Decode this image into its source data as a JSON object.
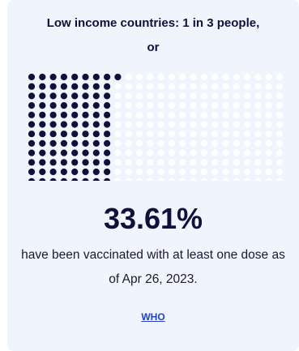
{
  "card": {
    "title": "Low income countries: 1 in 3 people, or",
    "percent": "33.61%",
    "description": "have been vaccinated with at least one dose as of Apr 26, 2023.",
    "source_link": "WHO"
  },
  "colors": {
    "filled": "#10103a",
    "empty": "#ffffff",
    "card_background": "#f0f4fc",
    "link": "#2340d0"
  },
  "chart_data": {
    "type": "waffle",
    "rows": 12,
    "columns": 24,
    "filled_fraction": 0.3361,
    "value_percent": 33.61
  }
}
